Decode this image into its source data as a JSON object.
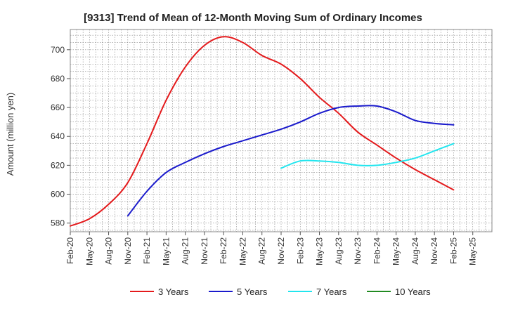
{
  "chart_data": {
    "type": "line",
    "title": "[9313]  Trend of Mean of 12-Month Moving Sum of Ordinary Incomes",
    "xlabel": "",
    "ylabel": "Amount (million yen)",
    "ylim": [
      574,
      714
    ],
    "yticks": [
      580,
      600,
      620,
      640,
      660,
      680,
      700
    ],
    "grid": true,
    "legend_position": "bottom",
    "x_tick_labels": [
      "Feb-20",
      "May-20",
      "Aug-20",
      "Nov-20",
      "Feb-21",
      "May-21",
      "Aug-21",
      "Nov-21",
      "Feb-22",
      "May-22",
      "Aug-22",
      "Nov-22",
      "Feb-23",
      "May-23",
      "Aug-23",
      "Nov-23",
      "Feb-24",
      "May-24",
      "Aug-24",
      "Nov-24",
      "Feb-25",
      "May-25"
    ],
    "series": [
      {
        "name": "3 Years",
        "color": "#e41a1c",
        "points": [
          [
            0,
            578
          ],
          [
            1,
            583
          ],
          [
            2,
            593
          ],
          [
            3,
            608
          ],
          [
            4,
            635
          ],
          [
            5,
            665
          ],
          [
            6,
            688
          ],
          [
            7,
            703
          ],
          [
            8,
            709
          ],
          [
            9,
            705
          ],
          [
            10,
            696
          ],
          [
            11,
            690
          ],
          [
            12,
            680
          ],
          [
            13,
            667
          ],
          [
            14,
            656
          ],
          [
            15,
            643
          ],
          [
            16,
            634
          ],
          [
            17,
            625
          ],
          [
            18,
            617
          ],
          [
            19,
            610
          ],
          [
            20,
            603
          ]
        ]
      },
      {
        "name": "5 Years",
        "color": "#1a1acc",
        "points": [
          [
            3,
            585
          ],
          [
            4,
            602
          ],
          [
            5,
            615
          ],
          [
            6,
            622
          ],
          [
            7,
            628
          ],
          [
            8,
            633
          ],
          [
            9,
            637
          ],
          [
            10,
            641
          ],
          [
            11,
            645
          ],
          [
            12,
            650
          ],
          [
            13,
            656
          ],
          [
            14,
            660
          ],
          [
            15,
            661
          ],
          [
            16,
            661
          ],
          [
            17,
            657
          ],
          [
            18,
            651
          ],
          [
            19,
            649
          ],
          [
            20,
            648
          ]
        ]
      },
      {
        "name": "7 Years",
        "color": "#22e5ee",
        "points": [
          [
            11,
            618
          ],
          [
            12,
            623
          ],
          [
            13,
            623
          ],
          [
            14,
            622
          ],
          [
            15,
            620
          ],
          [
            16,
            620
          ],
          [
            17,
            622
          ],
          [
            18,
            625
          ],
          [
            19,
            630
          ],
          [
            20,
            635
          ]
        ]
      },
      {
        "name": "10 Years",
        "color": "#228b22",
        "points": []
      }
    ]
  }
}
